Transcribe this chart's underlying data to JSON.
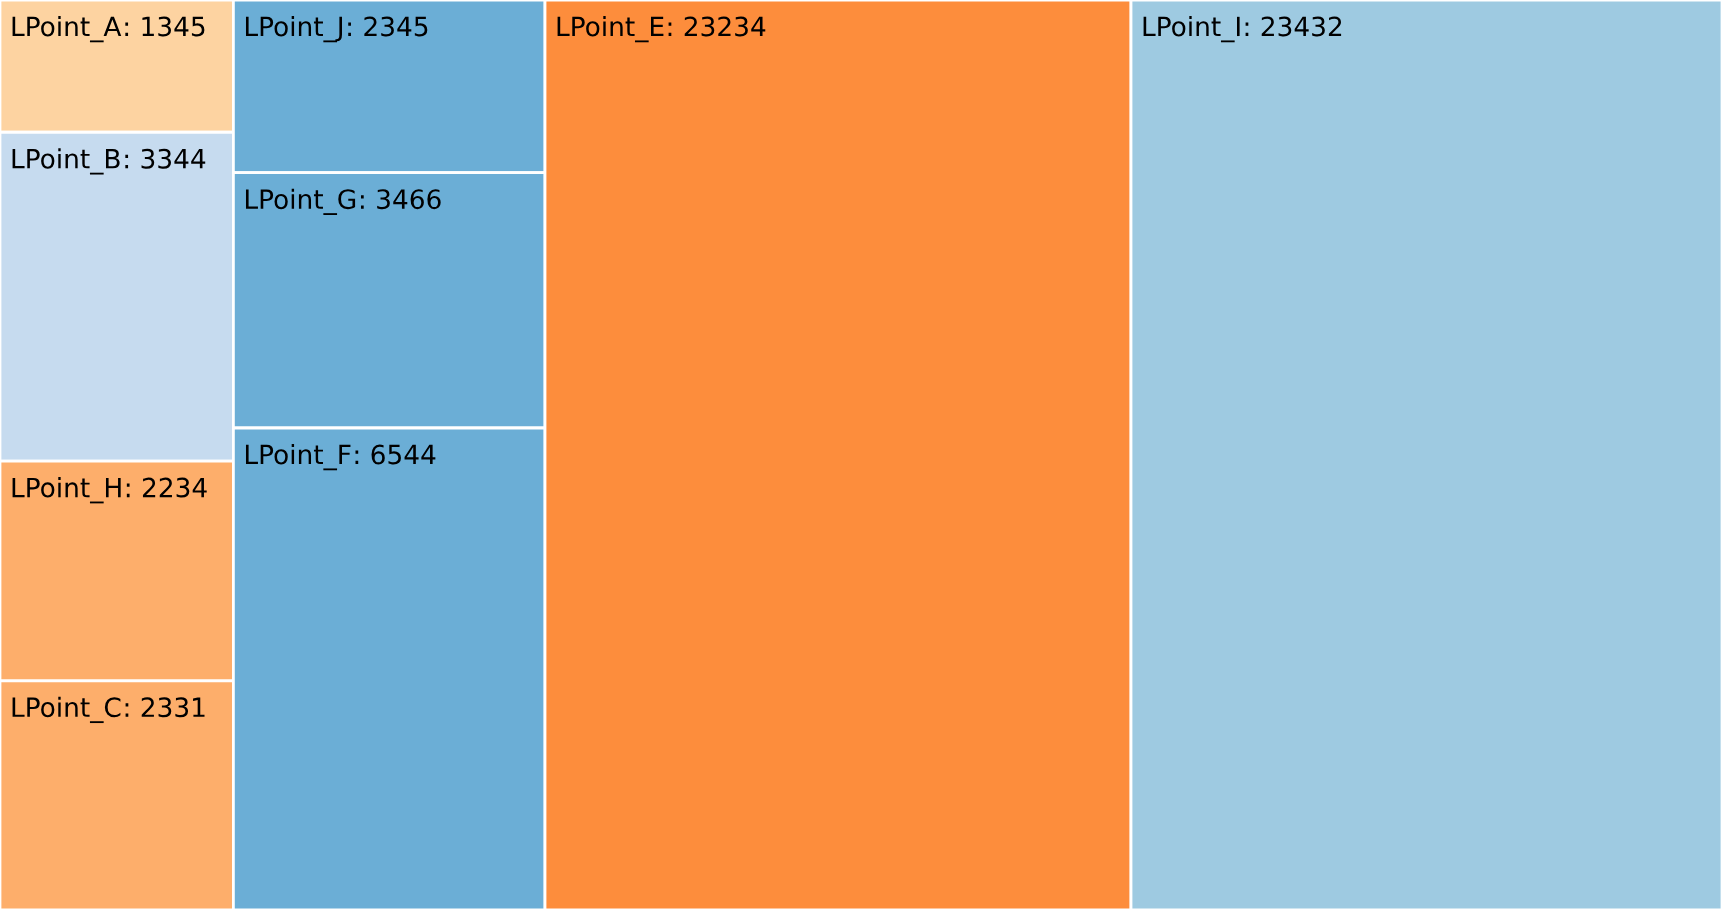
{
  "chart_data": {
    "type": "other",
    "categories": [
      "LPoint_A",
      "LPoint_B",
      "LPoint_H",
      "LPoint_C",
      "LPoint_J",
      "LPoint_G",
      "LPoint_F",
      "LPoint_E",
      "LPoint_I"
    ],
    "value_labels": [
      ": 1345",
      ": 3344",
      ": 2234",
      ": 2331",
      ": 2345",
      ": 3466",
      ": 6544",
      ": 23234",
      ": 23432"
    ],
    "values": [
      1345,
      3344,
      2234,
      2331,
      2345,
      3466,
      6544,
      23234,
      23432
    ],
    "colors": [
      "#fdd3a1",
      "#c6dbef",
      "#fdae6b",
      "#fdae6b",
      "#6baed6",
      "#6baed6",
      "#6baed6",
      "#fd8d3c",
      "#9ecae1"
    ]
  }
}
